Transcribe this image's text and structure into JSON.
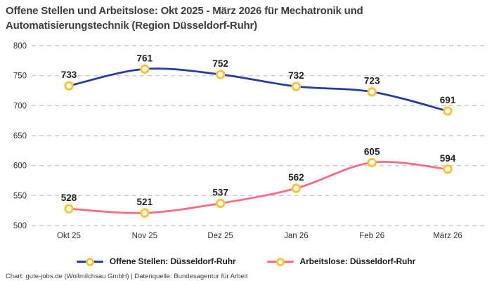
{
  "title": "Offene Stellen und Arbeitslose: Okt 2025 - März 2026 für Mechatronik und Automatisierungstechnik (Region Düsseldorf-Ruhr)",
  "footer": "Chart: gute-jobs.de (Wollmilchsau GmbH) | Datenquelle: Bundesagentur für Arbeit",
  "colors": {
    "open_positions": "#263c9c",
    "unemployed": "#fa6b83",
    "marker_ring": "#fcc433",
    "marker_fill": "#ffffff",
    "grid": "#cccccc",
    "title_text": "#3d3d3d",
    "axis_text": "#333333",
    "value_label": "#1f1f1f"
  },
  "chart_data": {
    "type": "line",
    "categories": [
      "Okt 25",
      "Nov 25",
      "Dez 25",
      "Jan 26",
      "Feb 26",
      "März 26"
    ],
    "series": [
      {
        "name": "Offene Stellen: Düsseldorf-Ruhr",
        "values": [
          733,
          761,
          752,
          732,
          723,
          691
        ],
        "color_key": "open_positions"
      },
      {
        "name": "Arbeitslose: Düsseldorf-Ruhr",
        "values": [
          528,
          521,
          537,
          562,
          605,
          594
        ],
        "color_key": "unemployed"
      }
    ],
    "title": "Offene Stellen und Arbeitslose: Okt 2025 - März 2026 für Mechatronik und Automatisierungstechnik (Region Düsseldorf-Ruhr)",
    "xlabel": "",
    "ylabel": "",
    "ylim": [
      500,
      800
    ],
    "ytick_step": 50,
    "grid": "horizontal-dashed",
    "legend_position": "bottom",
    "marker": "circle-ring",
    "data_labels": true
  }
}
